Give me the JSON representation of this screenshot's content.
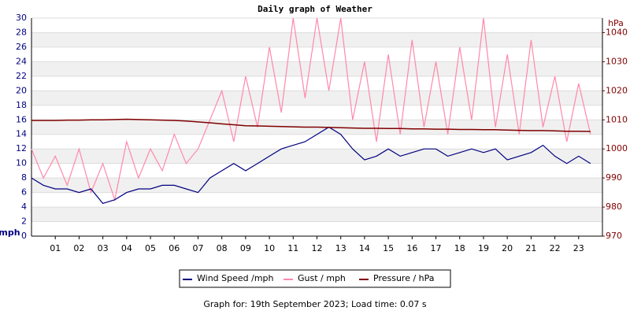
{
  "chart_data": {
    "type": "line",
    "title": "Daily graph of Weather",
    "y_label": "mph",
    "y2_label": "hPa",
    "x": [
      0,
      0.5,
      1,
      1.5,
      2,
      2.5,
      3,
      3.5,
      4,
      4.5,
      5,
      5.5,
      6,
      6.5,
      7,
      7.5,
      8,
      8.5,
      9,
      9.5,
      10,
      10.5,
      11,
      11.5,
      12,
      12.5,
      13,
      13.5,
      14,
      14.5,
      15,
      15.5,
      16,
      16.5,
      17,
      17.5,
      18,
      18.5,
      19,
      19.5,
      20,
      20.5,
      21,
      21.5,
      22,
      22.5,
      23,
      23.5
    ],
    "xlim": [
      0,
      24
    ],
    "xticks": [
      {
        "value": 1,
        "label": "01"
      },
      {
        "value": 2,
        "label": "02"
      },
      {
        "value": 3,
        "label": "03"
      },
      {
        "value": 4,
        "label": "04"
      },
      {
        "value": 5,
        "label": "05"
      },
      {
        "value": 6,
        "label": "06"
      },
      {
        "value": 7,
        "label": "07"
      },
      {
        "value": 8,
        "label": "08"
      },
      {
        "value": 9,
        "label": "09"
      },
      {
        "value": 10,
        "label": "10"
      },
      {
        "value": 11,
        "label": "11"
      },
      {
        "value": 12,
        "label": "12"
      },
      {
        "value": 13,
        "label": "13"
      },
      {
        "value": 14,
        "label": "14"
      },
      {
        "value": 15,
        "label": "15"
      },
      {
        "value": 16,
        "label": "16"
      },
      {
        "value": 17,
        "label": "17"
      },
      {
        "value": 18,
        "label": "18"
      },
      {
        "value": 19,
        "label": "19"
      },
      {
        "value": 20,
        "label": "20"
      },
      {
        "value": 21,
        "label": "21"
      },
      {
        "value": 22,
        "label": "22"
      },
      {
        "value": 23,
        "label": "23"
      }
    ],
    "ylim": [
      0,
      30
    ],
    "yticks": [
      0,
      2,
      4,
      6,
      8,
      10,
      12,
      14,
      16,
      18,
      20,
      22,
      24,
      26,
      28,
      30
    ],
    "y2lim": [
      970,
      1045
    ],
    "y2ticks": [
      970,
      980,
      990,
      1000,
      1010,
      1020,
      1030,
      1040
    ],
    "grid": true,
    "series": [
      {
        "name": "Wind Speed /mph",
        "color": "#000080",
        "values": [
          8,
          7,
          6.5,
          6.5,
          6,
          6.5,
          4.5,
          5,
          6,
          6.5,
          6.5,
          7,
          7,
          6.5,
          6,
          8,
          9,
          10,
          9,
          10,
          11,
          12,
          12.5,
          13,
          14,
          15,
          14,
          12,
          10.5,
          11,
          12,
          11,
          11.5,
          12,
          12,
          11,
          11.5,
          12,
          11.5,
          12,
          10.5,
          11,
          11.5,
          12.5,
          11,
          10,
          11,
          10
        ]
      },
      {
        "name": "Gust / mph",
        "color": "#ff88aa",
        "values": [
          12,
          8,
          11,
          7,
          12,
          6,
          10,
          5,
          13,
          8,
          12,
          9,
          14,
          10,
          12,
          16,
          20,
          13,
          22,
          15,
          26,
          17,
          30,
          19,
          30,
          20,
          30,
          16,
          24,
          13,
          25,
          14,
          27,
          15,
          24,
          14,
          26,
          16,
          30,
          15,
          25,
          14,
          27,
          15,
          22,
          13,
          21,
          14
        ]
      },
      {
        "name": "Pressure / hPa",
        "color": "#800000",
        "axis": "y2",
        "values": [
          1009.8,
          1009.8,
          1009.8,
          1009.9,
          1009.9,
          1010,
          1010,
          1010.1,
          1010.2,
          1010.1,
          1010,
          1009.9,
          1009.8,
          1009.6,
          1009.3,
          1009,
          1008.6,
          1008.3,
          1008,
          1007.9,
          1007.8,
          1007.7,
          1007.6,
          1007.5,
          1007.5,
          1007.4,
          1007.3,
          1007.2,
          1007.1,
          1007.1,
          1007,
          1007,
          1006.9,
          1006.9,
          1006.8,
          1006.8,
          1006.7,
          1006.7,
          1006.6,
          1006.6,
          1006.5,
          1006.4,
          1006.3,
          1006.3,
          1006.2,
          1006.1,
          1006.1,
          1006
        ]
      }
    ]
  },
  "footer": "Graph for: 19th September 2023; Load time: 0.07 s"
}
